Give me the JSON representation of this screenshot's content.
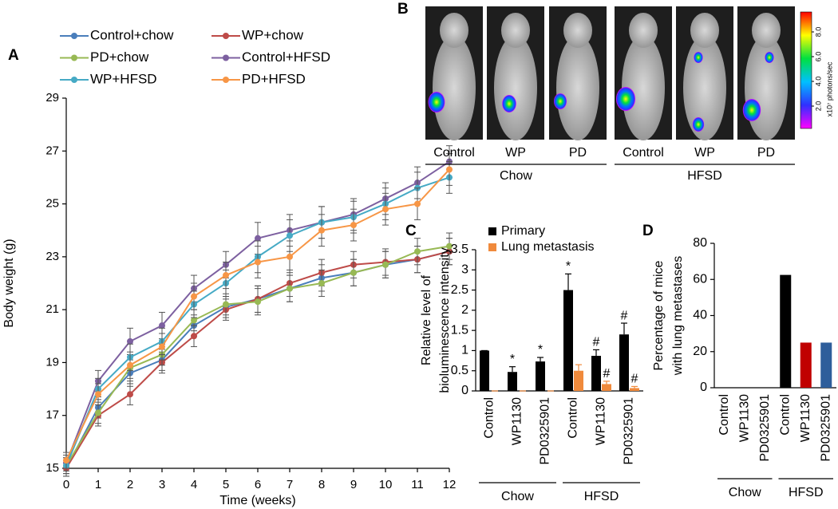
{
  "chart_data": [
    {
      "type": "line",
      "panel": "A",
      "xlabel": "Time (weeks)",
      "ylabel": "Body weight (g)",
      "x": [
        0,
        1,
        2,
        3,
        4,
        5,
        6,
        7,
        8,
        9,
        10,
        11,
        12
      ],
      "xlim": [
        0,
        12
      ],
      "xticks": [
        0,
        1,
        2,
        3,
        4,
        5,
        6,
        7,
        8,
        9,
        10,
        11,
        12
      ],
      "ylim": [
        15,
        29
      ],
      "yticks": [
        15,
        17,
        19,
        21,
        23,
        25,
        27,
        29
      ],
      "series": [
        {
          "name": "Control+chow",
          "color": "#4a7ebb",
          "values": [
            15.0,
            17.3,
            18.6,
            19.1,
            20.4,
            21.1,
            21.4,
            21.8,
            22.2,
            22.4,
            22.7,
            22.9,
            23.2
          ],
          "errors": [
            0.3,
            0.4,
            0.5,
            0.4,
            0.4,
            0.4,
            0.5,
            0.5,
            0.5,
            0.5,
            0.5,
            0.5,
            0.5
          ]
        },
        {
          "name": "WP+chow",
          "color": "#be4b48",
          "values": [
            15.0,
            17.0,
            17.8,
            19.0,
            20.0,
            21.0,
            21.4,
            22.0,
            22.4,
            22.7,
            22.8,
            22.9,
            23.2
          ],
          "errors": [
            0.3,
            0.4,
            0.4,
            0.4,
            0.4,
            0.4,
            0.5,
            0.5,
            0.5,
            0.5,
            0.5,
            0.5,
            0.5
          ]
        },
        {
          "name": "PD+chow",
          "color": "#98b954",
          "values": [
            15.1,
            17.1,
            18.8,
            19.3,
            20.6,
            21.2,
            21.3,
            21.8,
            22.0,
            22.4,
            22.7,
            23.2,
            23.4
          ],
          "errors": [
            0.3,
            0.4,
            0.5,
            0.4,
            0.4,
            0.4,
            0.5,
            0.5,
            0.5,
            0.5,
            0.5,
            0.5,
            0.5
          ]
        },
        {
          "name": "Control+HFSD",
          "color": "#7d60a0",
          "values": [
            15.2,
            18.3,
            19.8,
            20.4,
            21.8,
            22.7,
            23.7,
            24.0,
            24.3,
            24.6,
            25.2,
            25.8,
            26.6
          ],
          "errors": [
            0.3,
            0.4,
            0.5,
            0.5,
            0.5,
            0.5,
            0.6,
            0.6,
            0.6,
            0.6,
            0.6,
            0.6,
            0.6
          ]
        },
        {
          "name": "WP+HFSD",
          "color": "#46aac5",
          "values": [
            15.1,
            18.0,
            19.2,
            19.8,
            21.2,
            22.0,
            23.0,
            23.8,
            24.3,
            24.5,
            25.0,
            25.6,
            26.0
          ],
          "errors": [
            0.3,
            0.4,
            0.5,
            0.5,
            0.5,
            0.5,
            0.6,
            0.6,
            0.6,
            0.6,
            0.6,
            0.6,
            0.6
          ]
        },
        {
          "name": "PD+HFSD",
          "color": "#f79646",
          "values": [
            15.3,
            17.8,
            18.9,
            19.6,
            21.5,
            22.3,
            22.8,
            23.0,
            24.0,
            24.2,
            24.8,
            25.0,
            26.3
          ],
          "errors": [
            0.3,
            0.4,
            0.5,
            0.5,
            0.5,
            0.5,
            0.6,
            0.6,
            0.6,
            0.6,
            0.6,
            0.6,
            0.6
          ]
        }
      ]
    },
    {
      "type": "bar",
      "panel": "C",
      "ylabel": [
        "Relative level of",
        "bioluminescence intensity"
      ],
      "categories": [
        "Control",
        "WP1130",
        "PD0325901",
        "Control",
        "WP1130",
        "PD0325901"
      ],
      "groups": [
        "Chow",
        "HFSD"
      ],
      "ylim": [
        0,
        3.5
      ],
      "yticks": [
        0,
        0.5,
        1,
        1.5,
        2,
        2.5,
        3,
        3.5
      ],
      "series": [
        {
          "name": "Primary",
          "color": "#000000",
          "values": [
            1,
            0.47,
            0.73,
            2.5,
            0.87,
            1.4
          ],
          "errors": [
            0,
            0.13,
            0.1,
            0.4,
            0.15,
            0.28
          ],
          "markers": [
            null,
            "*",
            "*",
            "*",
            "#",
            "#"
          ]
        },
        {
          "name": "Lung metastasis",
          "color": "#f08a3c",
          "values": [
            0,
            0,
            0,
            0.5,
            0.17,
            0.07
          ],
          "errors": [
            0,
            0,
            0,
            0.15,
            0.07,
            0.04
          ],
          "markers": [
            null,
            null,
            null,
            null,
            "#",
            "#"
          ]
        }
      ]
    },
    {
      "type": "bar",
      "panel": "D",
      "ylabel": [
        "Percentage of mice",
        "with lung metastases"
      ],
      "categories": [
        "Control",
        "WP1130",
        "PD0325901",
        "Control",
        "WP1130",
        "PD0325901"
      ],
      "groups": [
        "Chow",
        "HFSD"
      ],
      "ylim": [
        0,
        80
      ],
      "yticks": [
        0,
        20,
        40,
        60,
        80
      ],
      "values": [
        0,
        0,
        0,
        62.5,
        25,
        25
      ],
      "colors": [
        "#000000",
        "#000000",
        "#000000",
        "#000000",
        "#c00000",
        "#2e5e9b"
      ]
    }
  ],
  "panel_b": {
    "panel": "B",
    "groups": [
      {
        "name": "Chow",
        "labels": [
          "Control",
          "WP",
          "PD"
        ]
      },
      {
        "name": "HFSD",
        "labels": [
          "Control",
          "WP",
          "PD"
        ]
      }
    ],
    "colorbar": {
      "label": "x10⁷ photons/sec",
      "ticks": [
        {
          "value": 2,
          "label": "2.0"
        },
        {
          "value": 4,
          "label": "4.0"
        },
        {
          "value": 6,
          "label": "6.0"
        },
        {
          "value": 8,
          "label": "8.0"
        }
      ]
    }
  }
}
